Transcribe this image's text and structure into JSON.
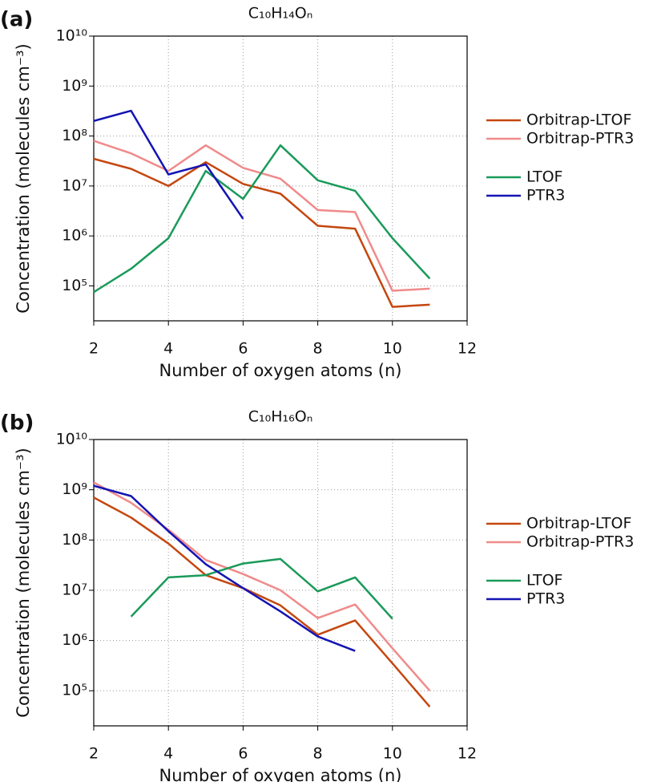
{
  "chart_data": [
    {
      "type": "line",
      "panel_label": "(a)",
      "title": "C₁₀H₁₄Oₙ",
      "x_label": "Number of oxygen atoms (n)",
      "y_label": "Concentration (molecules cm⁻³)",
      "log_y": true,
      "grid": true,
      "legend": "right",
      "x": [
        2,
        3,
        4,
        5,
        6,
        7,
        8,
        9,
        10,
        11
      ],
      "xlim": [
        2,
        12
      ],
      "xticks": [
        2,
        4,
        6,
        8,
        10,
        12
      ],
      "ylim": [
        20000,
        10000000000
      ],
      "yticks": [
        {
          "value": 100000,
          "label": "10⁵"
        },
        {
          "value": 1000000,
          "label": "10⁶"
        },
        {
          "value": 10000000,
          "label": "10⁷"
        },
        {
          "value": 100000000,
          "label": "10⁸"
        },
        {
          "value": 1000000000,
          "label": "10⁹"
        },
        {
          "value": 10000000000,
          "label": "10¹⁰"
        }
      ],
      "series": [
        {
          "name": "Orbitrap-LTOF",
          "color": "#c4470f",
          "values": [
            35000000,
            22000000,
            10000000,
            30000000,
            11000000,
            7000000,
            1600000,
            1400000,
            38000,
            42000
          ]
        },
        {
          "name": "Orbitrap-PTR3",
          "color": "#f08a8a",
          "values": [
            80000000,
            45000000,
            20000000,
            65000000,
            23000000,
            14000000,
            3300000,
            3000000,
            80000,
            88000
          ]
        },
        {
          "name": "LTOF",
          "color": "#1a9a5a",
          "values": [
            75000,
            220000,
            900000,
            20000000,
            5500000,
            65000000,
            13000000,
            8000000,
            900000,
            140000
          ]
        },
        {
          "name": "PTR3",
          "color": "#1414b4",
          "values": [
            200000000,
            320000000,
            17000000,
            27000000,
            2200000,
            null,
            null,
            null,
            null,
            null
          ]
        }
      ]
    },
    {
      "type": "line",
      "panel_label": "(b)",
      "title": "C₁₀H₁₆Oₙ",
      "x_label": "Number of oxygen atoms (n)",
      "y_label": "Concentration (molecules cm⁻³)",
      "log_y": true,
      "grid": true,
      "legend": "right",
      "x": [
        2,
        3,
        4,
        5,
        6,
        7,
        8,
        9,
        10,
        11
      ],
      "xlim": [
        2,
        12
      ],
      "xticks": [
        2,
        4,
        6,
        8,
        10,
        12
      ],
      "ylim": [
        20000,
        10000000000
      ],
      "yticks": [
        {
          "value": 100000,
          "label": "10⁵"
        },
        {
          "value": 1000000,
          "label": "10⁶"
        },
        {
          "value": 10000000,
          "label": "10⁷"
        },
        {
          "value": 100000000,
          "label": "10⁸"
        },
        {
          "value": 1000000000,
          "label": "10⁹"
        },
        {
          "value": 10000000000,
          "label": "10¹⁰"
        }
      ],
      "series": [
        {
          "name": "Orbitrap-LTOF",
          "color": "#c4470f",
          "values": [
            700000000,
            280000000,
            85000000,
            20000000,
            11000000,
            5000000,
            1300000,
            2500000,
            350000,
            48000
          ]
        },
        {
          "name": "Orbitrap-PTR3",
          "color": "#f08a8a",
          "values": [
            1400000000,
            550000000,
            160000000,
            40000000,
            21000000,
            10000000,
            2800000,
            5200000,
            700000,
            100000
          ]
        },
        {
          "name": "LTOF",
          "color": "#1a9a5a",
          "values": [
            null,
            3000000,
            18000000,
            20000000,
            34000000,
            42000000,
            9500000,
            18000000,
            2700000,
            null
          ]
        },
        {
          "name": "PTR3",
          "color": "#1414b4",
          "values": [
            1200000000,
            750000000,
            150000000,
            33000000,
            11000000,
            3800000,
            1200000,
            620000,
            null,
            null
          ]
        }
      ]
    }
  ]
}
